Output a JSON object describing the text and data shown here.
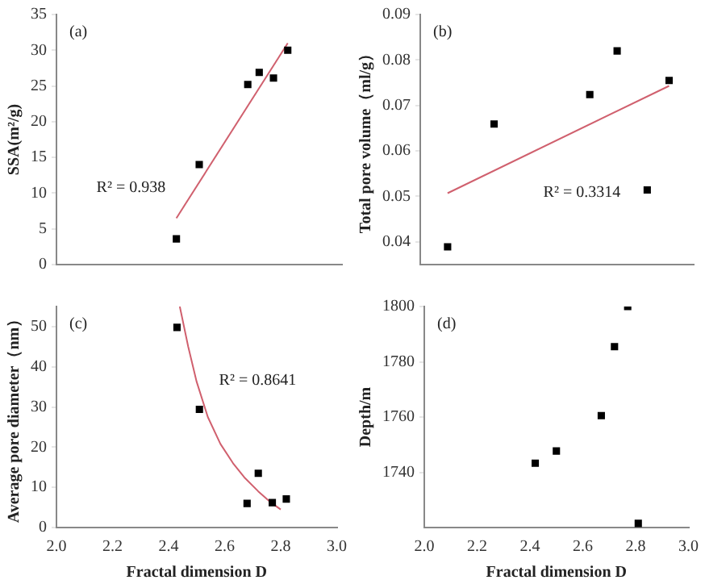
{
  "chart_data": [
    {
      "type": "scatter",
      "ylabel": "SSA(m²/g)",
      "xlim": [
        2,
        3
      ],
      "xticks": [
        {
          "value": 2,
          "label": null
        },
        {
          "value": 2.2,
          "label": null
        },
        {
          "value": 2.4,
          "label": null
        },
        {
          "value": 2.6,
          "label": null
        },
        {
          "value": 2.8,
          "label": null
        },
        {
          "value": 3,
          "label": null
        }
      ],
      "ylim": [
        0,
        35
      ],
      "yticks": [
        0,
        5,
        10,
        15,
        20,
        25,
        30,
        35
      ],
      "tick_labels": "y",
      "grid": false,
      "legend": false,
      "series": [
        {
          "type": "scatter",
          "marker": "square",
          "color": "#000000",
          "x": [
            2.42,
            2.5,
            2.67,
            2.71,
            2.76,
            2.81
          ],
          "values": [
            3.6,
            14,
            25.2,
            26.9,
            26.1,
            30
          ]
        },
        {
          "type": "line",
          "marker": "none",
          "color": "#d0606e",
          "line_style": "solid",
          "x": [
            2.42,
            2.81
          ],
          "values": [
            6.5,
            31
          ]
        }
      ],
      "annotations": [
        "(a)",
        "R² = 0.938"
      ]
    },
    {
      "type": "scatter",
      "ylabel": "Total pore volume（ml/g）",
      "xlim": [
        2,
        3
      ],
      "xticks": [
        {
          "value": 2,
          "label": null
        },
        {
          "value": 2.2,
          "label": null
        },
        {
          "value": 2.4,
          "label": null
        },
        {
          "value": 2.6,
          "label": null
        },
        {
          "value": 2.8,
          "label": null
        },
        {
          "value": 3,
          "label": null
        }
      ],
      "ylim": [
        0.035,
        0.09
      ],
      "yticks": [
        0.04,
        0.05,
        0.06,
        0.07,
        0.08,
        0.09
      ],
      "tick_labels": "y",
      "grid": false,
      "legend": false,
      "series": [
        {
          "type": "scatter",
          "marker": "square",
          "color": "#000000",
          "x": [
            2.1,
            2.27,
            2.62,
            2.72,
            2.83,
            2.91
          ],
          "values": [
            0.0389,
            0.0659,
            0.0724,
            0.082,
            0.0514,
            0.0755
          ]
        },
        {
          "type": "line",
          "marker": "none",
          "color": "#d0606e",
          "line_style": "solid",
          "x": [
            2.1,
            2.91
          ],
          "values": [
            0.0507,
            0.0743
          ]
        }
      ],
      "annotations": [
        "(b)",
        "R² = 0.3314"
      ]
    },
    {
      "type": "scatter",
      "xlabel": "Fractal dimension D",
      "ylabel": "Average pore diameter（nm）",
      "xlim": [
        2,
        3
      ],
      "xticks": [
        {
          "value": 2,
          "label": "2.0"
        },
        {
          "value": 2.2,
          "label": "2.2"
        },
        {
          "value": 2.4,
          "label": "2.4"
        },
        {
          "value": 2.6,
          "label": "2.6"
        },
        {
          "value": 2.8,
          "label": "2.8"
        },
        {
          "value": 3,
          "label": "3.0"
        }
      ],
      "ylim": [
        0,
        55
      ],
      "yticks": [
        0,
        10,
        20,
        30,
        40,
        50
      ],
      "grid": false,
      "legend": false,
      "series": [
        {
          "type": "scatter",
          "marker": "square",
          "color": "#000000",
          "x": [
            2.43,
            2.51,
            2.68,
            2.72,
            2.77,
            2.82
          ],
          "values": [
            49.8,
            29.4,
            6,
            13.5,
            6.2,
            7.1
          ]
        },
        {
          "type": "line",
          "marker": "none",
          "color": "#d0606e",
          "line_style": "solid",
          "x": [
            2.44,
            2.47,
            2.5,
            2.54,
            2.585,
            2.63,
            2.67,
            2.72,
            2.76,
            2.8
          ],
          "values": [
            55,
            45,
            36.3,
            27.5,
            20.8,
            16,
            12.5,
            9,
            6.5,
            4.5
          ]
        }
      ],
      "annotations": [
        "(c)",
        "R² = 0.8641"
      ]
    },
    {
      "type": "scatter",
      "xlabel": "Fractal dimension D",
      "ylabel": "Depth/m",
      "xlim": [
        2,
        3
      ],
      "xticks": [
        {
          "value": 2,
          "label": "2.0"
        },
        {
          "value": 2.2,
          "label": "2.2"
        },
        {
          "value": 2.4,
          "label": "2.4"
        },
        {
          "value": 2.6,
          "label": "2.6"
        },
        {
          "value": 2.8,
          "label": "2.8"
        },
        {
          "value": 3,
          "label": "3.0"
        }
      ],
      "ylim": [
        1720,
        1800
      ],
      "yticks": [
        1740,
        1760,
        1780,
        1800
      ],
      "grid": false,
      "legend": false,
      "series": [
        {
          "type": "scatter",
          "marker": "square",
          "color": "#000000",
          "x": [
            2.42,
            2.5,
            2.67,
            2.72,
            2.77,
            2.81
          ],
          "values": [
            1743.3,
            1747.7,
            1760.5,
            1785.5,
            1800,
            1721.5
          ]
        }
      ],
      "annotations": [
        "(d)"
      ]
    }
  ]
}
